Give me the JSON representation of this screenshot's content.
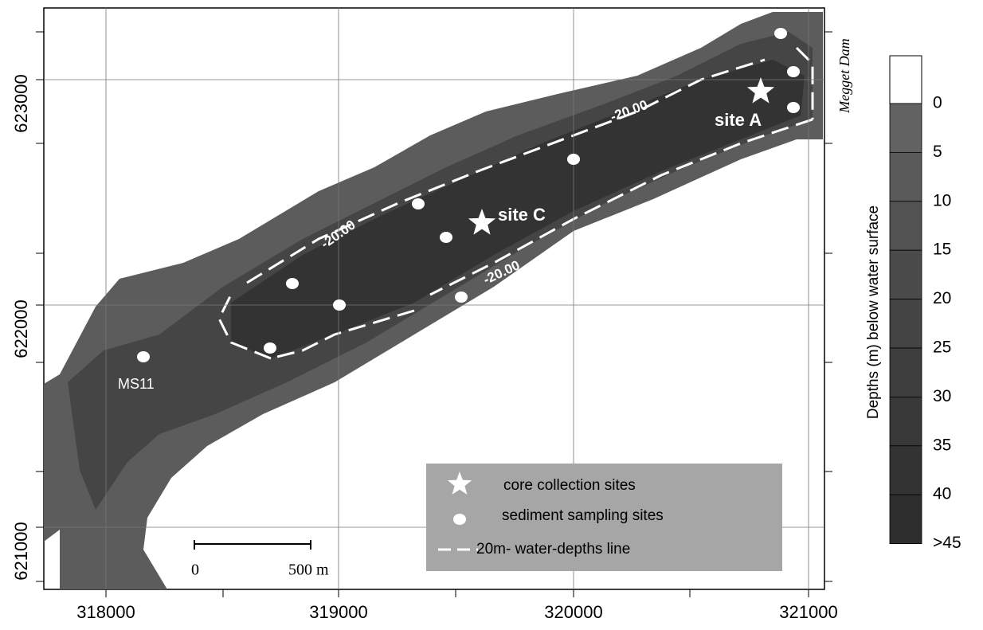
{
  "map": {
    "x_ticks": [
      318000,
      319000,
      320000,
      321000
    ],
    "y_ticks": [
      623000,
      622000,
      621000
    ],
    "dam_label": "Megget Dam",
    "site_labels": [
      "site A",
      "site C",
      "MS11"
    ],
    "contour_labels": [
      "-20.00",
      "-20.00",
      "-20.00"
    ],
    "scale_bar": {
      "start": "0",
      "end": "500 m"
    },
    "legend": [
      "core collection sites",
      "sediment sampling sites",
      "20m- water-depths line"
    ],
    "colorbar": {
      "title": "Depths (m) below water surface",
      "labels": [
        "0",
        "5",
        "10",
        "15",
        "20",
        "25",
        "30",
        "35",
        "40",
        ">45"
      ]
    }
  }
}
